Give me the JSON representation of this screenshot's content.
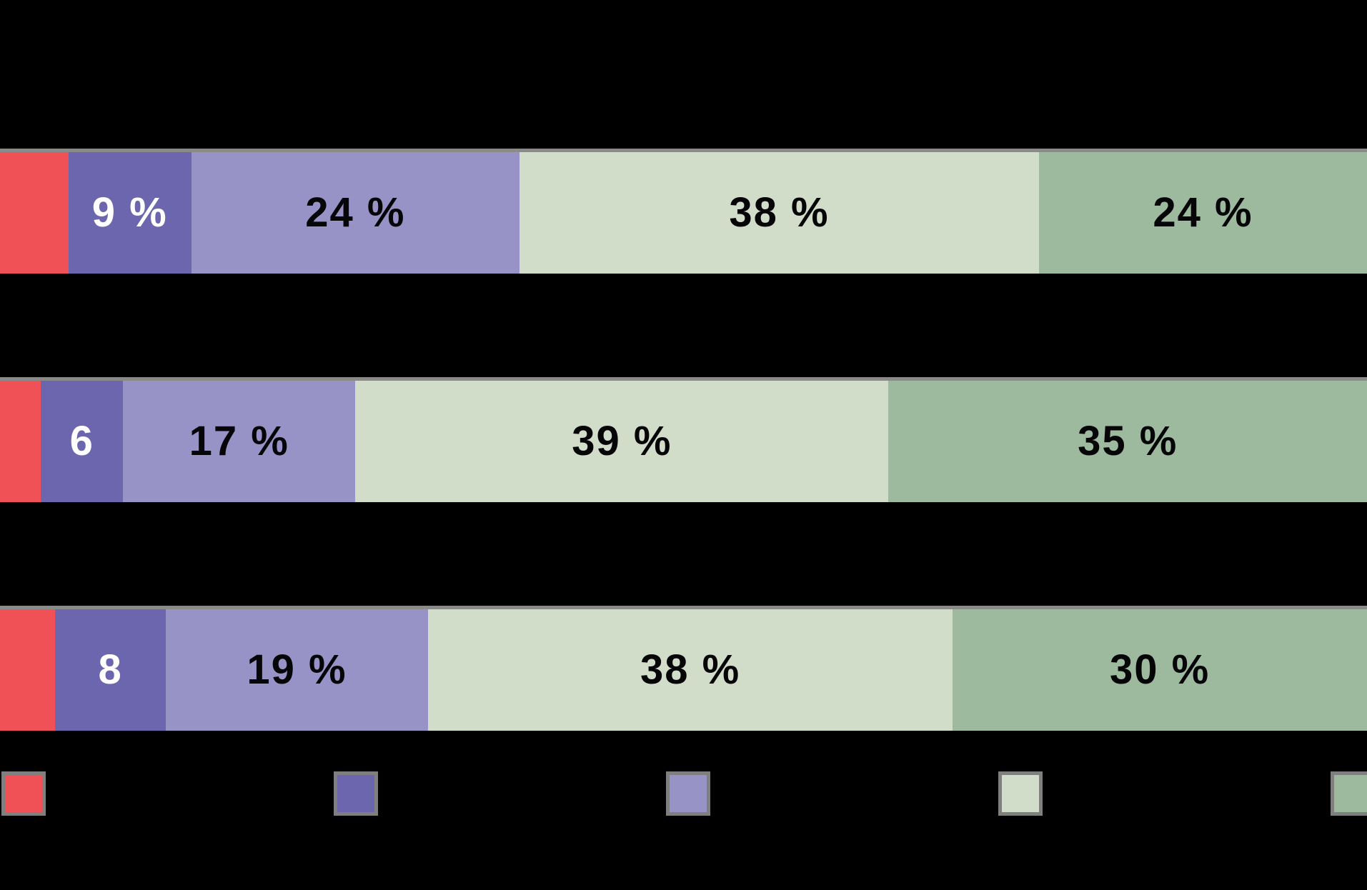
{
  "chart_data": {
    "type": "bar",
    "stacked": true,
    "orientation": "horizontal",
    "value_unit": "%",
    "background": "#000000",
    "bar_stroke_color": "#8a8a88",
    "legend_position": "bottom",
    "legend_labels_visible": false,
    "categories": [
      "",
      "",
      ""
    ],
    "series": [
      {
        "name": "red",
        "color": "#EF5157",
        "label_color": "#060608",
        "values": [
          5,
          3,
          4
        ],
        "labels": [
          "",
          "",
          ""
        ]
      },
      {
        "name": "dark-purple",
        "color": "#6C66AE",
        "label_color": "#FFFFFF",
        "values": [
          9,
          6,
          8
        ],
        "labels": [
          "9 %",
          "6",
          "8"
        ]
      },
      {
        "name": "light-purple",
        "color": "#9893C6",
        "label_color": "#060608",
        "values": [
          24,
          17,
          19
        ],
        "labels": [
          "24 %",
          "17 %",
          "19 %"
        ]
      },
      {
        "name": "pale-green",
        "color": "#D2DDC9",
        "label_color": "#060608",
        "values": [
          38,
          39,
          38
        ],
        "labels": [
          "38 %",
          "39 %",
          "38 %"
        ]
      },
      {
        "name": "sage-green",
        "color": "#9DB99E",
        "label_color": "#060608",
        "values": [
          24,
          35,
          30
        ],
        "labels": [
          "24 %",
          "35 %",
          "30 %"
        ]
      }
    ]
  },
  "legend": {
    "swatch_border_color": "#7f7f7f"
  }
}
